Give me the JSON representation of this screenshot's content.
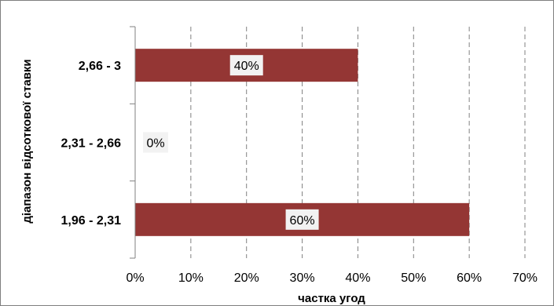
{
  "chart_data": {
    "type": "bar",
    "orientation": "horizontal",
    "categories": [
      "2,66 - 3",
      "2,31 - 2,66",
      "1,96 - 2,31"
    ],
    "values": [
      40,
      0,
      60
    ],
    "data_labels": [
      "40%",
      "0%",
      "60%"
    ],
    "x_ticks": [
      "0%",
      "10%",
      "20%",
      "30%",
      "40%",
      "50%",
      "60%",
      "70%"
    ],
    "xlim": [
      0,
      70
    ],
    "xlabel": "частка угод",
    "ylabel": "діапазон відсоткової ставки",
    "grid": "vertical-dashed",
    "legend": "none",
    "colors": {
      "bar": "#943634",
      "grid": "#808080",
      "axis": "#808080",
      "label_bg": "#f2f2f2",
      "border": "#7f7f7f"
    }
  }
}
